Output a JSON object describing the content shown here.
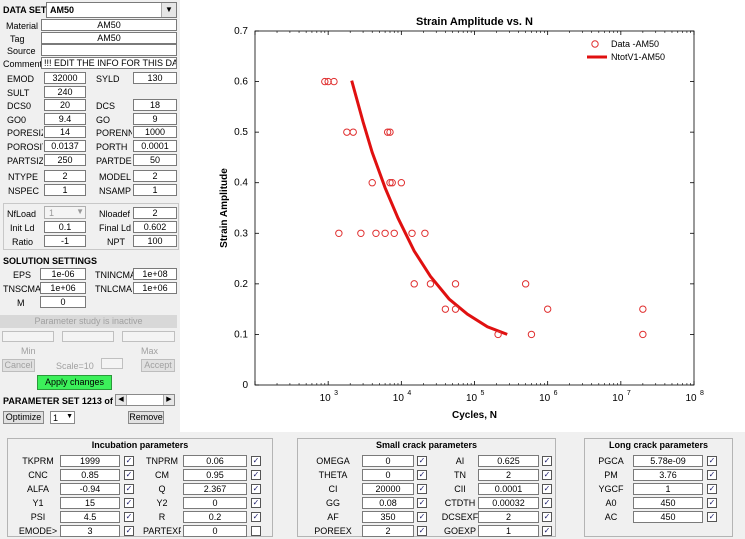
{
  "left": {
    "data_set": {
      "label": "DATA SET",
      "value": "AM50"
    },
    "material": {
      "label": "Material",
      "value": "AM50"
    },
    "tag": {
      "label": "Tag",
      "value": "AM50"
    },
    "source": {
      "label": "Source",
      "value": ""
    },
    "comment": {
      "label": "Comment",
      "value": "!!! EDIT THE INFO FOR THIS DAT"
    },
    "params": [
      {
        "l1": "EMOD",
        "v1": "32000",
        "l2": "SYLD",
        "v2": "130"
      },
      {
        "l1": "SULT",
        "v1": "240",
        "l2": "",
        "v2": ""
      },
      {
        "l1": "DCS0",
        "v1": "20",
        "l2": "DCS",
        "v2": "18"
      },
      {
        "l1": "GO0",
        "v1": "9.4",
        "l2": "GO",
        "v2": "9"
      },
      {
        "l1": "PORESIZ",
        "v1": "14",
        "l2": "PORENN",
        "v2": "1000"
      },
      {
        "l1": "POROSIT",
        "v1": "0.0137",
        "l2": "PORTH",
        "v2": "0.0001"
      },
      {
        "l1": "PARTSIZ",
        "v1": "250",
        "l2": "PARTDE",
        "v2": "50"
      }
    ],
    "ntype": {
      "label": "NTYPE",
      "value": "2"
    },
    "model": {
      "label": "MODEL",
      "value": "2"
    },
    "nspec": {
      "label": "NSPEC",
      "value": "1"
    },
    "nsamp": {
      "label": "NSAMP",
      "value": "1"
    },
    "nfload": {
      "label": "NfLoad",
      "value": "1"
    },
    "nloadef": {
      "label": "Nloadef",
      "value": "2"
    },
    "init_ld": {
      "label": "Init Ld",
      "value": "0.1"
    },
    "final_ld": {
      "label": "Final Ld",
      "value": "0.602"
    },
    "ratio": {
      "label": "Ratio",
      "value": "-1"
    },
    "npt": {
      "label": "NPT",
      "value": "100"
    },
    "solution": {
      "title": "SOLUTION SETTINGS",
      "eps": {
        "label": "EPS",
        "value": "1e-06"
      },
      "tnincma": {
        "label": "TNINCMA",
        "value": "1e+08"
      },
      "tnscma": {
        "label": "TNSCMA",
        "value": "1e+06"
      },
      "tnlcma": {
        "label": "TNLCMA",
        "value": "1e+06"
      },
      "m": {
        "label": "M",
        "value": "0"
      }
    },
    "param_study": {
      "status": "Parameter study is inactive",
      "min": "Min",
      "max": "Max",
      "scale": "Scale=10",
      "cancel": "Cancel",
      "accept": "Accept"
    },
    "apply_changes": "Apply changes",
    "param_set": "PARAMETER SET 1213 of",
    "optimize": "Optimize",
    "optimize_select": "1",
    "remove": "Remove"
  },
  "chart_data": {
    "type": "scatter",
    "title": "Strain Amplitude vs. N",
    "xlabel": "Cycles, N",
    "ylabel": "Strain Amplitude",
    "xscale": "log",
    "xlim": [
      100,
      100000000
    ],
    "ylim": [
      0,
      0.7
    ],
    "x_ticks": [
      {
        "base": "10",
        "exp": "3",
        "v": 1000
      },
      {
        "base": "10",
        "exp": "4",
        "v": 10000
      },
      {
        "base": "10",
        "exp": "5",
        "v": 100000
      },
      {
        "base": "10",
        "exp": "6",
        "v": 1000000
      },
      {
        "base": "10",
        "exp": "7",
        "v": 10000000
      },
      {
        "base": "10",
        "exp": "8",
        "v": 100000000
      }
    ],
    "y_ticks": [
      "0",
      "0.1",
      "0.2",
      "0.3",
      "0.4",
      "0.5",
      "0.6",
      "0.7"
    ],
    "legend_position": "top-right",
    "series": [
      {
        "name": "Data -AM50",
        "kind": "markers",
        "color": "#e03030",
        "points": [
          [
            900,
            0.6
          ],
          [
            1000,
            0.6
          ],
          [
            1200,
            0.6
          ],
          [
            1800,
            0.5
          ],
          [
            2200,
            0.5
          ],
          [
            6500,
            0.5
          ],
          [
            7000,
            0.5
          ],
          [
            4000,
            0.4
          ],
          [
            7000,
            0.4
          ],
          [
            7500,
            0.4
          ],
          [
            10000,
            0.4
          ],
          [
            1400,
            0.3
          ],
          [
            2800,
            0.3
          ],
          [
            4500,
            0.3
          ],
          [
            6000,
            0.3
          ],
          [
            8000,
            0.3
          ],
          [
            14000,
            0.3
          ],
          [
            21000,
            0.3
          ],
          [
            15000,
            0.2
          ],
          [
            25000,
            0.2
          ],
          [
            55000,
            0.2
          ],
          [
            500000,
            0.2
          ],
          [
            40000,
            0.15
          ],
          [
            55000,
            0.15
          ],
          [
            1000000,
            0.15
          ],
          [
            20000000,
            0.15
          ],
          [
            210000,
            0.1
          ],
          [
            600000,
            0.1
          ],
          [
            20000000,
            0.1
          ]
        ]
      },
      {
        "name": "NtotV1-AM50",
        "kind": "line",
        "color": "#e01010",
        "points": [
          [
            2100,
            0.602
          ],
          [
            3000,
            0.52
          ],
          [
            4000,
            0.46
          ],
          [
            6000,
            0.39
          ],
          [
            9000,
            0.33
          ],
          [
            15000,
            0.265
          ],
          [
            25000,
            0.215
          ],
          [
            45000,
            0.17
          ],
          [
            80000,
            0.14
          ],
          [
            150000,
            0.115
          ],
          [
            280000,
            0.1
          ]
        ]
      }
    ]
  },
  "incubation": {
    "title": "Incubation parameters",
    "rows": [
      {
        "l1": "TKPRM",
        "v1": "1999",
        "c1": true,
        "l2": "TNPRM",
        "v2": "0.06",
        "c2": true
      },
      {
        "l1": "CNC",
        "v1": "0.85",
        "c1": true,
        "l2": "CM",
        "v2": "0.95",
        "c2": true
      },
      {
        "l1": "ALFA",
        "v1": "-0.94",
        "c1": true,
        "l2": "Q",
        "v2": "2.367",
        "c2": true
      },
      {
        "l1": "Y1",
        "v1": "15",
        "c1": true,
        "l2": "Y2",
        "v2": "0",
        "c2": true
      },
      {
        "l1": "PSI",
        "v1": "4.5",
        "c1": true,
        "l2": "R",
        "v2": "0.2",
        "c2": true
      },
      {
        "l1": "EMODE>",
        "v1": "3",
        "c1": true,
        "l2": "PARTEXF",
        "v2": "0",
        "c2": false
      }
    ]
  },
  "small_crack": {
    "title": "Small crack parameters",
    "rows": [
      {
        "l1": "OMEGA",
        "v1": "0",
        "c1": true,
        "l2": "AI",
        "v2": "0.625",
        "c2": true
      },
      {
        "l1": "THETA",
        "v1": "0",
        "c1": true,
        "l2": "TN",
        "v2": "2",
        "c2": true
      },
      {
        "l1": "CI",
        "v1": "20000",
        "c1": true,
        "l2": "CII",
        "v2": "0.0001",
        "c2": true
      },
      {
        "l1": "GG",
        "v1": "0.08",
        "c1": true,
        "l2": "CTDTH",
        "v2": "0.00032",
        "c2": true
      },
      {
        "l1": "AF",
        "v1": "350",
        "c1": true,
        "l2": "DCSEXF",
        "v2": "2",
        "c2": true
      },
      {
        "l1": "POREEX",
        "v1": "2",
        "c1": true,
        "l2": "GOEXP",
        "v2": "1",
        "c2": true
      }
    ]
  },
  "long_crack": {
    "title": "Long crack parameters",
    "rows": [
      {
        "l1": "PGCA",
        "v1": "5.78e-09",
        "c1": true
      },
      {
        "l1": "PM",
        "v1": "3.76",
        "c1": true
      },
      {
        "l1": "YGCF",
        "v1": "1",
        "c1": true
      },
      {
        "l1": "A0",
        "v1": "450",
        "c1": true
      },
      {
        "l1": "AC",
        "v1": "450",
        "c1": true
      }
    ]
  }
}
